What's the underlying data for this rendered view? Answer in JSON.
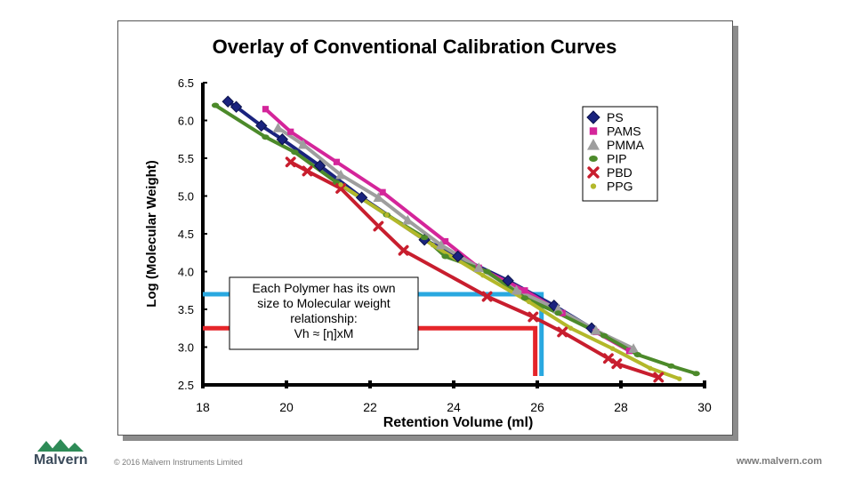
{
  "chart_data": {
    "type": "scatter",
    "title": "Overlay of Conventional Calibration Curves",
    "xlabel": "Retention Volume (ml)",
    "ylabel": "Log (Molecular Weight)",
    "xlim": [
      18,
      30
    ],
    "ylim": [
      2.5,
      6.5
    ],
    "xticks": [
      "18",
      "20",
      "22",
      "24",
      "26",
      "28",
      "30"
    ],
    "yticks": [
      "6.5",
      "6.0",
      "5.5",
      "5.0",
      "4.5",
      "4.0",
      "3.5",
      "3.0",
      "2.5"
    ],
    "legend_position": "top-right",
    "series": [
      {
        "name": "PS",
        "color": "#1a237e",
        "marker": "diamond",
        "x": [
          18.6,
          18.8,
          19.4,
          19.9,
          20.8,
          21.8,
          23.3,
          24.1,
          25.3,
          26.4,
          27.3
        ],
        "y": [
          6.25,
          6.18,
          5.93,
          5.75,
          5.4,
          4.98,
          4.42,
          4.2,
          3.88,
          3.55,
          3.25
        ]
      },
      {
        "name": "PAMS",
        "color": "#d4259a",
        "marker": "square",
        "x": [
          19.5,
          20.1,
          21.2,
          22.3,
          23.8,
          24.6,
          25.7,
          26.6,
          27.4,
          28.2
        ],
        "y": [
          6.15,
          5.85,
          5.45,
          5.05,
          4.4,
          4.05,
          3.75,
          3.45,
          3.2,
          2.95
        ]
      },
      {
        "name": "PMMA",
        "color": "#9e9e9e",
        "marker": "triangle",
        "x": [
          19.8,
          20.4,
          21.3,
          22.2,
          22.9,
          23.7,
          24.6,
          25.5,
          26.5,
          27.4,
          28.3
        ],
        "y": [
          5.9,
          5.68,
          5.28,
          4.98,
          4.68,
          4.35,
          4.05,
          3.75,
          3.5,
          3.22,
          2.98
        ]
      },
      {
        "name": "PIP",
        "color": "#4c8a2a",
        "marker": "circle",
        "x": [
          18.3,
          19.5,
          20.2,
          21.2,
          22.4,
          23.3,
          23.8,
          24.8,
          25.7,
          26.5,
          27.6,
          28.4,
          29.2,
          29.8
        ],
        "y": [
          6.2,
          5.78,
          5.58,
          5.18,
          4.75,
          4.45,
          4.2,
          4.0,
          3.65,
          3.45,
          3.15,
          2.9,
          2.75,
          2.65
        ]
      },
      {
        "name": "PBD",
        "color": "#c81e2e",
        "marker": "cross",
        "x": [
          20.1,
          20.5,
          21.3,
          22.2,
          22.8,
          24.8,
          25.9,
          26.6,
          27.7,
          27.9,
          28.9
        ],
        "y": [
          5.45,
          5.33,
          5.1,
          4.6,
          4.28,
          3.67,
          3.4,
          3.2,
          2.85,
          2.78,
          2.6
        ]
      },
      {
        "name": "PPG",
        "color": "#b3b82a",
        "marker": "dot",
        "x": [
          21.3,
          22.4,
          23.5,
          24.7,
          25.8,
          26.8,
          27.8,
          28.7,
          29.4
        ],
        "y": [
          5.15,
          4.75,
          4.35,
          3.95,
          3.6,
          3.25,
          2.98,
          2.72,
          2.58
        ]
      }
    ],
    "guide_lines": [
      {
        "color": "#29a8e0",
        "y": 3.7,
        "x_from": 18,
        "x_to": 26.1
      },
      {
        "color": "#e5252a",
        "y": 3.25,
        "x_from": 18,
        "x_to": 25.95
      }
    ],
    "annotation": {
      "lines": [
        "Each Polymer has its own",
        "size to Molecular weight",
        "relationship:"
      ],
      "formula": "Vh ≈ [η]xM"
    }
  },
  "footer": {
    "brand": "Malvern",
    "copyright": "© 2016 Malvern Instruments Limited",
    "website": "www.malvern.com",
    "logo_color": "#2e8b57"
  }
}
